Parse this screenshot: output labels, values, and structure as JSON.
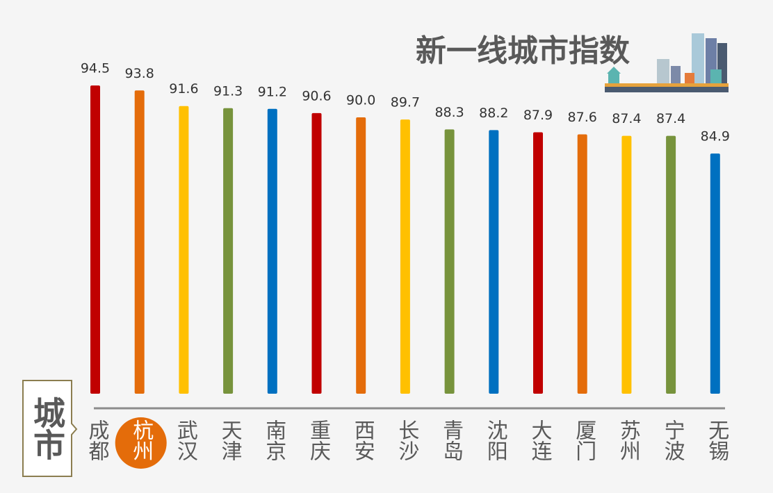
{
  "chart_data": {
    "type": "bar",
    "title": "新一线城市指数",
    "x_label": "城市",
    "categories": [
      "成都",
      "杭州",
      "武汉",
      "天津",
      "南京",
      "重庆",
      "西安",
      "长沙",
      "青岛",
      "沈阳",
      "大连",
      "厦门",
      "苏州",
      "宁波",
      "无锡"
    ],
    "values": [
      94.5,
      93.8,
      91.6,
      91.3,
      91.2,
      90.6,
      90.0,
      89.7,
      88.3,
      88.2,
      87.9,
      87.6,
      87.4,
      87.4,
      84.9
    ],
    "value_labels": [
      "94.5",
      "93.8",
      "91.6",
      "91.3",
      "91.2",
      "90.6",
      "90.0",
      "89.7",
      "88.3",
      "88.2",
      "87.9",
      "87.6",
      "87.4",
      "87.4",
      "84.9"
    ],
    "colors": [
      "#c00000",
      "#e46c0a",
      "#ffc000",
      "#77933c",
      "#0070c0",
      "#c00000",
      "#e46c0a",
      "#ffc000",
      "#77933c",
      "#0070c0",
      "#c00000",
      "#e46c0a",
      "#ffc000",
      "#77933c",
      "#0070c0"
    ],
    "highlight": 1,
    "ylim": [
      51,
      100
    ]
  }
}
